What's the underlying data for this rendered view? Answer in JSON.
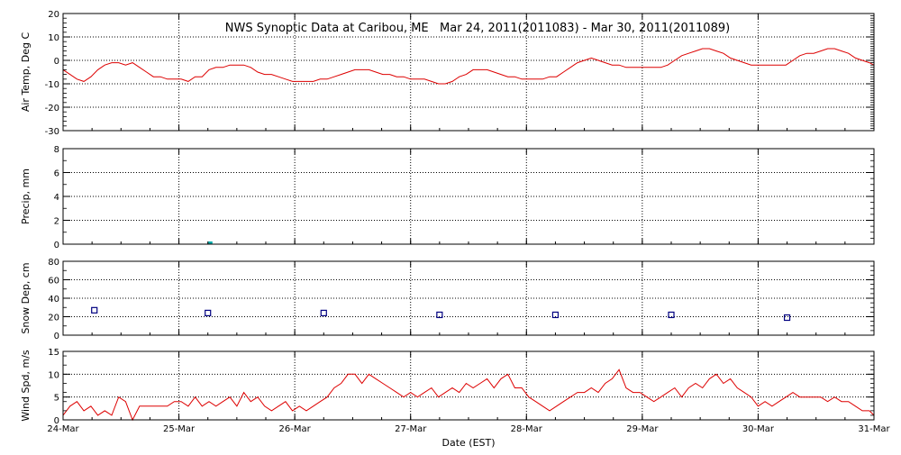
{
  "title": "NWS Synoptic Data at Caribou, ME   Mar 24, 2011(2011083) - Mar 30, 2011(2011089)",
  "xlabel": "Date (EST)",
  "x_ticks": [
    "24-Mar",
    "25-Mar",
    "26-Mar",
    "27-Mar",
    "28-Mar",
    "29-Mar",
    "30-Mar",
    "31-Mar"
  ],
  "colors": {
    "temp": "#dd0000",
    "wind": "#dd0000",
    "precip": "#00aaaa",
    "snow": "#000080",
    "grid": "#000000"
  },
  "chart_data": [
    {
      "type": "line",
      "ylabel": "Air Temp, Deg C",
      "ylim": [
        -30,
        20
      ],
      "yticks": [
        20,
        10,
        0,
        -10,
        -20,
        -30
      ],
      "grid": true,
      "x": [
        0,
        0.06,
        0.12,
        0.18,
        0.24,
        0.3,
        0.36,
        0.42,
        0.48,
        0.54,
        0.6,
        0.66,
        0.72,
        0.78,
        0.84,
        0.9,
        0.96,
        1.02,
        1.08,
        1.14,
        1.2,
        1.26,
        1.32,
        1.38,
        1.44,
        1.5,
        1.56,
        1.62,
        1.68,
        1.74,
        1.8,
        1.86,
        1.92,
        1.98,
        2.04,
        2.1,
        2.16,
        2.22,
        2.28,
        2.34,
        2.4,
        2.46,
        2.52,
        2.58,
        2.64,
        2.7,
        2.76,
        2.82,
        2.88,
        2.94,
        3.0,
        3.06,
        3.12,
        3.18,
        3.24,
        3.3,
        3.36,
        3.42,
        3.48,
        3.54,
        3.6,
        3.66,
        3.72,
        3.78,
        3.84,
        3.9,
        3.96,
        4.02,
        4.08,
        4.14,
        4.2,
        4.26,
        4.32,
        4.38,
        4.44,
        4.5,
        4.56,
        4.62,
        4.68,
        4.74,
        4.8,
        4.86,
        4.92,
        4.98,
        5.04,
        5.1,
        5.16,
        5.22,
        5.28,
        5.34,
        5.4,
        5.46,
        5.52,
        5.58,
        5.64,
        5.7,
        5.76,
        5.82,
        5.88,
        5.94,
        6.0,
        6.06,
        6.12,
        6.18,
        6.24,
        6.3,
        6.36,
        6.42,
        6.48,
        6.54,
        6.6,
        6.66,
        6.72,
        6.78,
        6.84,
        6.9,
        6.96,
        7.0
      ],
      "series": [
        {
          "values": [
            -4,
            -6,
            -8,
            -9,
            -7,
            -4,
            -2,
            -1,
            -1,
            -2,
            -1,
            -3,
            -5,
            -7,
            -7,
            -8,
            -8,
            -8,
            -9,
            -7,
            -7,
            -4,
            -3,
            -3,
            -2,
            -2,
            -2,
            -3,
            -5,
            -6,
            -6,
            -7,
            -8,
            -9,
            -9,
            -9,
            -9,
            -8,
            -8,
            -7,
            -6,
            -5,
            -4,
            -4,
            -4,
            -5,
            -6,
            -6,
            -7,
            -7,
            -8,
            -8,
            -8,
            -9,
            -10,
            -10,
            -9,
            -7,
            -6,
            -4,
            -4,
            -4,
            -5,
            -6,
            -7,
            -7,
            -8,
            -8,
            -8,
            -8,
            -7,
            -7,
            -5,
            -3,
            -1,
            0,
            1,
            0,
            -1,
            -2,
            -2,
            -3,
            -3,
            -3,
            -3,
            -3,
            -3,
            -2,
            0,
            2,
            3,
            4,
            5,
            5,
            4,
            3,
            1,
            0,
            -1,
            -2,
            -2,
            -2,
            -2,
            -2,
            -2,
            0,
            2,
            3,
            3,
            4,
            5,
            5,
            4,
            3,
            1,
            0,
            -1,
            -2
          ]
        }
      ]
    },
    {
      "type": "scatter",
      "ylabel": "Precip, mm",
      "ylim": [
        0,
        8
      ],
      "yticks": [
        8,
        6,
        4,
        2,
        0
      ],
      "grid": true,
      "x": [
        1.27
      ],
      "series": [
        {
          "values": [
            0
          ]
        }
      ]
    },
    {
      "type": "scatter",
      "ylabel": "Snow Dep, cm",
      "ylim": [
        0,
        80
      ],
      "yticks": [
        80,
        60,
        40,
        20,
        0
      ],
      "grid": true,
      "x": [
        0.27,
        1.25,
        2.25,
        3.25,
        4.25,
        5.25,
        6.25
      ],
      "series": [
        {
          "values": [
            27,
            24,
            24,
            22,
            22,
            22,
            19
          ]
        }
      ]
    },
    {
      "type": "line",
      "ylabel": "Wind Spd, m/s",
      "ylim": [
        0,
        15
      ],
      "yticks": [
        15,
        10,
        5,
        0
      ],
      "grid": true,
      "x": [
        0,
        0.06,
        0.12,
        0.18,
        0.24,
        0.3,
        0.36,
        0.42,
        0.48,
        0.54,
        0.6,
        0.66,
        0.72,
        0.78,
        0.84,
        0.9,
        0.96,
        1.02,
        1.08,
        1.14,
        1.2,
        1.26,
        1.32,
        1.38,
        1.44,
        1.5,
        1.56,
        1.62,
        1.68,
        1.74,
        1.8,
        1.86,
        1.92,
        1.98,
        2.04,
        2.1,
        2.16,
        2.22,
        2.28,
        2.34,
        2.4,
        2.46,
        2.52,
        2.58,
        2.64,
        2.7,
        2.76,
        2.82,
        2.88,
        2.94,
        3.0,
        3.06,
        3.12,
        3.18,
        3.24,
        3.3,
        3.36,
        3.42,
        3.48,
        3.54,
        3.6,
        3.66,
        3.72,
        3.78,
        3.84,
        3.9,
        3.96,
        4.02,
        4.08,
        4.14,
        4.2,
        4.26,
        4.32,
        4.38,
        4.44,
        4.5,
        4.56,
        4.62,
        4.68,
        4.74,
        4.8,
        4.86,
        4.92,
        4.98,
        5.04,
        5.1,
        5.16,
        5.22,
        5.28,
        5.34,
        5.4,
        5.46,
        5.52,
        5.58,
        5.64,
        5.7,
        5.76,
        5.82,
        5.88,
        5.94,
        6.0,
        6.06,
        6.12,
        6.18,
        6.24,
        6.3,
        6.36,
        6.42,
        6.48,
        6.54,
        6.6,
        6.66,
        6.72,
        6.78,
        6.84,
        6.9,
        6.96,
        7.0
      ],
      "series": [
        {
          "values": [
            1,
            3,
            4,
            2,
            3,
            1,
            2,
            1,
            5,
            4,
            0,
            3,
            3,
            3,
            3,
            3,
            4,
            4,
            3,
            5,
            3,
            4,
            3,
            4,
            5,
            3,
            6,
            4,
            5,
            3,
            2,
            3,
            4,
            2,
            3,
            2,
            3,
            4,
            5,
            7,
            8,
            10,
            10,
            8,
            10,
            9,
            8,
            7,
            6,
            5,
            6,
            5,
            6,
            7,
            5,
            6,
            7,
            6,
            8,
            7,
            8,
            9,
            7,
            9,
            10,
            7,
            7,
            5,
            4,
            3,
            2,
            3,
            4,
            5,
            6,
            6,
            7,
            6,
            8,
            9,
            11,
            7,
            6,
            6,
            5,
            4,
            5,
            6,
            7,
            5,
            7,
            8,
            7,
            9,
            10,
            8,
            9,
            7,
            6,
            5,
            3,
            4,
            3,
            4,
            5,
            6,
            5,
            5,
            5,
            5,
            4,
            5,
            4,
            4,
            3,
            2,
            2,
            1
          ]
        }
      ]
    }
  ]
}
